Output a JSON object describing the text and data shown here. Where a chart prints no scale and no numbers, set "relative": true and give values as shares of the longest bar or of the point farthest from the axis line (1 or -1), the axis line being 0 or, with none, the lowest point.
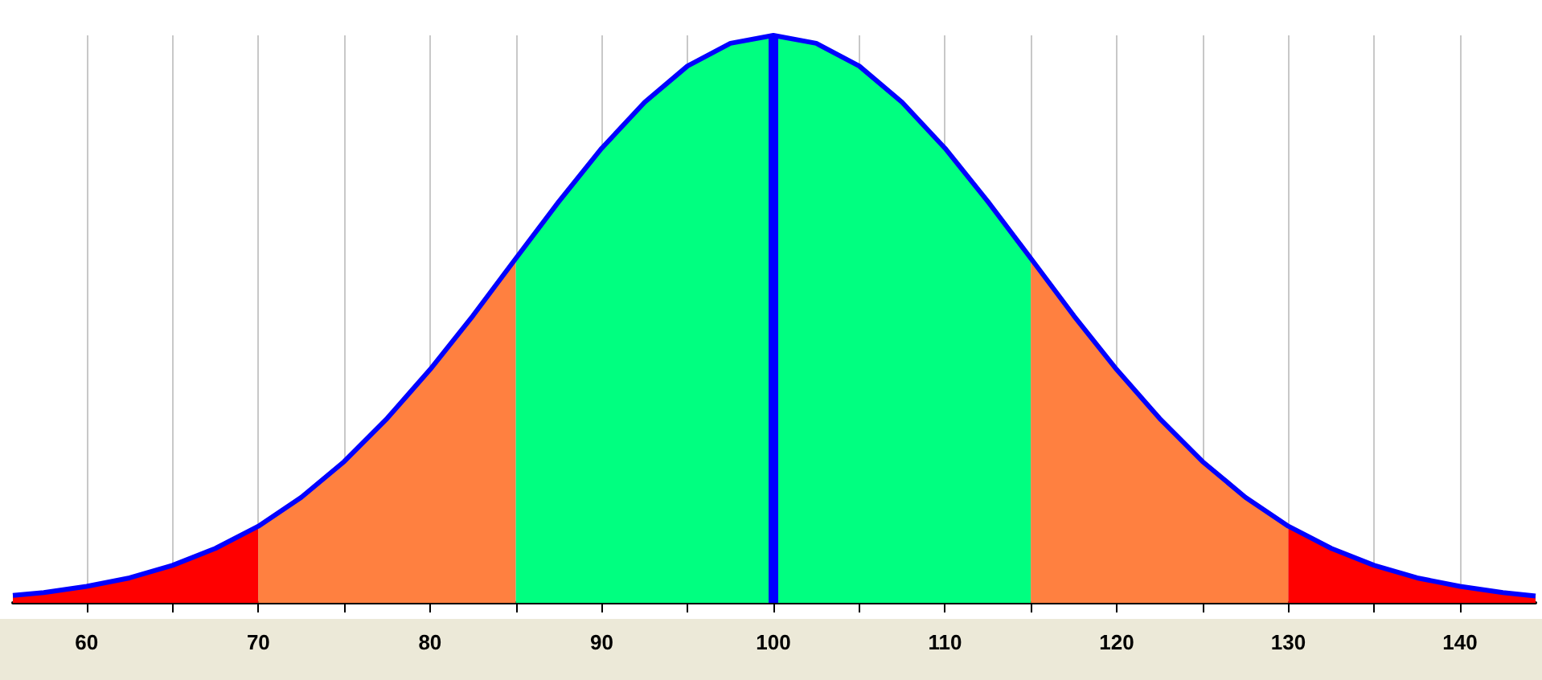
{
  "chart_data": {
    "type": "area",
    "relative": true,
    "marker": "none",
    "grid": "x",
    "xlim": [
      55.7,
      144.4
    ],
    "xticks": [
      60,
      {
        "value": 65,
        "label": null
      },
      70,
      {
        "value": 75,
        "label": null
      },
      80,
      {
        "value": 85,
        "label": null
      },
      90,
      {
        "value": 95,
        "label": null
      },
      100,
      {
        "value": 105,
        "label": null
      },
      110,
      {
        "value": 115,
        "label": null
      },
      120,
      {
        "value": 125,
        "label": null
      },
      130,
      {
        "value": 135,
        "label": null
      },
      140
    ],
    "series": [
      {
        "color": "#ff0000",
        "x": [
          55.7,
          57.5,
          60,
          62.5,
          65,
          67.5,
          70
        ],
        "values": [
          0.013,
          0.018,
          0.029,
          0.044,
          0.066,
          0.096,
          0.135
        ]
      },
      {
        "color": "#ff8040",
        "x": [
          70,
          72.5,
          75,
          77.5,
          80,
          82.5,
          85
        ],
        "values": [
          0.135,
          0.186,
          0.249,
          0.325,
          0.411,
          0.506,
          0.607
        ]
      },
      {
        "color": "#00ff80",
        "x": [
          85,
          87.5,
          90,
          92.5,
          95,
          97.5,
          100,
          102.5,
          105,
          107.5,
          110,
          112.5,
          115
        ],
        "values": [
          0.607,
          0.707,
          0.801,
          0.882,
          0.946,
          0.986,
          1,
          0.986,
          0.946,
          0.882,
          0.801,
          0.707,
          0.607
        ]
      },
      {
        "color": "#ff8040",
        "x": [
          115,
          117.5,
          120,
          122.5,
          125,
          127.5,
          130
        ],
        "values": [
          0.607,
          0.506,
          0.411,
          0.325,
          0.249,
          0.186,
          0.135
        ]
      },
      {
        "color": "#ff0000",
        "x": [
          130,
          132.5,
          135,
          137.5,
          140,
          142.5,
          144.4
        ],
        "values": [
          0.135,
          0.096,
          0.066,
          0.044,
          0.029,
          0.018,
          0.012
        ]
      },
      {
        "type": "line",
        "color": "#0000ff",
        "x": [
          55.7,
          57.5,
          60,
          62.5,
          65,
          67.5,
          70,
          72.5,
          75,
          77.5,
          80,
          82.5,
          85,
          87.5,
          90,
          92.5,
          95,
          97.5,
          100,
          102.5,
          105,
          107.5,
          110,
          112.5,
          115,
          117.5,
          120,
          122.5,
          125,
          127.5,
          130,
          132.5,
          135,
          137.5,
          140,
          142.5,
          144.4
        ],
        "values": [
          0.013,
          0.018,
          0.029,
          0.044,
          0.066,
          0.096,
          0.135,
          0.186,
          0.249,
          0.325,
          0.411,
          0.506,
          0.607,
          0.707,
          0.801,
          0.882,
          0.946,
          0.986,
          1,
          0.986,
          0.946,
          0.882,
          0.801,
          0.707,
          0.607,
          0.506,
          0.411,
          0.325,
          0.249,
          0.186,
          0.135,
          0.096,
          0.066,
          0.044,
          0.029,
          0.018,
          0.012
        ]
      }
    ],
    "ref_lines": [
      {
        "axis": "x",
        "value": 100,
        "color": "#0000ff"
      }
    ]
  }
}
